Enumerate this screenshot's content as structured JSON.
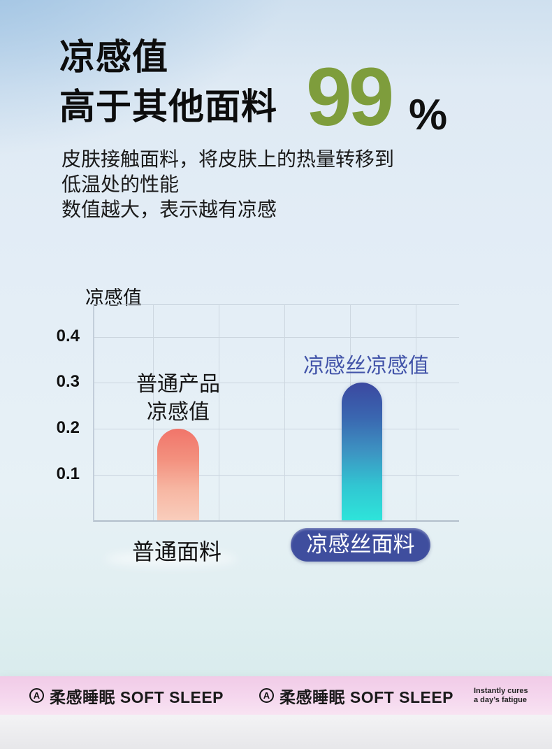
{
  "header": {
    "title_line1": "凉感值",
    "title_line2": "高于其他面料",
    "big_number": "99",
    "big_number_color": "#7e9d3c",
    "percent_sign": "%",
    "description_lines": [
      "皮肤接触面料，将皮肤上的热量转移到",
      "低温处的性能",
      "数值越大，表示越有凉感"
    ]
  },
  "chart_data": {
    "type": "bar",
    "ylabel": "凉感值",
    "xlabel": "",
    "categories": [
      "普通面料",
      "凉感丝面料"
    ],
    "values": [
      0.2,
      0.3
    ],
    "y_ticks": [
      0.4,
      0.3,
      0.2,
      0.1
    ],
    "ylim": [
      0,
      0.47
    ],
    "grid": true,
    "bar_annotations": [
      "普通产品\n凉感值",
      "凉感丝凉感值"
    ],
    "annotation_colors": [
      "#161616",
      "#4254a9"
    ],
    "bar_gradients": [
      [
        "#f1756a",
        "#f3907e",
        "#f7b7a3",
        "#f9cdbc"
      ],
      [
        "#3b48a0",
        "#3a66b0",
        "#3d93c2",
        "#31c6d2",
        "#2ee4da"
      ]
    ],
    "category_pill_color": "#3f4e9e"
  },
  "footer": {
    "brands": [
      {
        "logo_letter": "A",
        "label": "柔感睡眠 SOFT SLEEP"
      },
      {
        "logo_letter": "A",
        "label": "柔感睡眠 SOFT SLEEP"
      }
    ],
    "tagline_lines": [
      "Instantly cures",
      "a day’s fatigue"
    ]
  }
}
